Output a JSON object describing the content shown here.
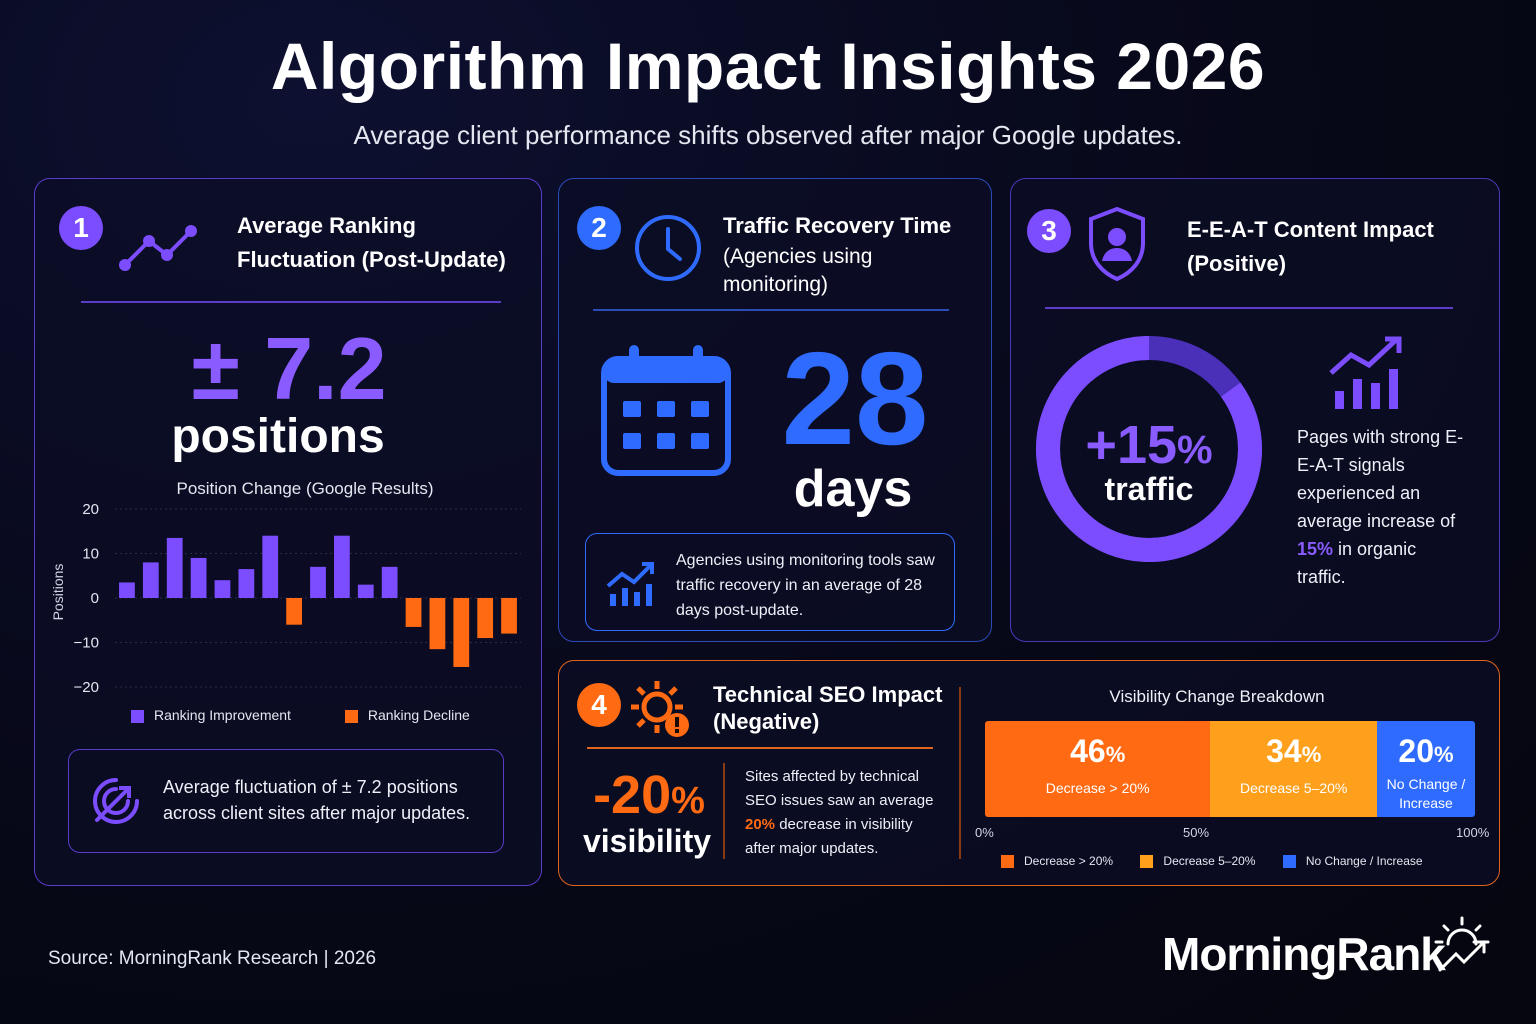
{
  "header": {
    "title": "Algorithm Impact Insights 2026",
    "subtitle": "Average client performance shifts observed after major Google updates."
  },
  "card1": {
    "number": "1",
    "title_line1": "Average Ranking",
    "title_line2": "Fluctuation (Post-Update)",
    "big_value": "± 7.2",
    "big_unit": "positions",
    "note": "Average fluctuation of ± 7.2 positions across client sites after major updates.",
    "icon": "trend-line-icon",
    "note_icon": "target-arrow-icon"
  },
  "card2": {
    "number": "2",
    "title_line1": "Traffic Recovery Time",
    "title_line2": "(Agencies using",
    "title_line3": "monitoring)",
    "big_value": "28",
    "big_unit": "days",
    "note": "Agencies using monitoring tools saw traffic recovery in an average of 28 days post-update.",
    "icon": "clock-icon"
  },
  "card3": {
    "number": "3",
    "title_line1": "E-E-A-T Content Impact",
    "title_line2": "(Positive)",
    "ring_value": "+15",
    "ring_pct": "%",
    "ring_unit": "traffic",
    "ring_fraction": 0.85,
    "desc_pre": "Pages with strong E-E-A-T signals experienced an average increase of ",
    "desc_hl": "15%",
    "desc_post": " in organic traffic.",
    "icon": "shield-user-icon"
  },
  "card4": {
    "number": "4",
    "title_line1": "Technical SEO Impact",
    "title_line2": "(Negative)",
    "big_value": "-20",
    "big_pct": "%",
    "big_unit": "visibility",
    "desc_pre": "Sites affected by technical SEO issues saw an average ",
    "desc_hl": "20%",
    "desc_post": " decrease in visibility after major updates.",
    "icon": "gear-warning-icon"
  },
  "colors": {
    "purple": "#7c4dff",
    "blue": "#2f6bff",
    "orange": "#ff6a13",
    "amber": "#ffa01c"
  },
  "chart_data": [
    {
      "type": "bar",
      "title": "Position Change (Google Results)",
      "ylabel": "Positions",
      "ylim": [
        -20,
        20
      ],
      "yticks": [
        "20",
        "10",
        "0",
        "−10",
        "−20"
      ],
      "ytick_values": [
        20,
        10,
        0,
        -10,
        -20
      ],
      "values": [
        3.5,
        8,
        13.5,
        9,
        4,
        6.5,
        14,
        -6,
        7,
        14,
        3,
        7,
        -6.5,
        -11.5,
        -15.5,
        -9,
        -8
      ],
      "legend": [
        {
          "name": "Ranking Improvement",
          "color": "#7c4dff"
        },
        {
          "name": "Ranking Decline",
          "color": "#ff6a13"
        }
      ],
      "legend_position": "bottom",
      "grid": true
    },
    {
      "type": "bar",
      "title": "Visibility Change Breakdown",
      "orientation": "stacked-horizontal",
      "segments": [
        {
          "value": 46,
          "label_value": "46",
          "label": "Decrease > 20%",
          "color": "#ff6a13"
        },
        {
          "value": 34,
          "label_value": "34",
          "label": "Decrease 5–20%",
          "color": "#ffa01c"
        },
        {
          "value": 20,
          "label_value": "20",
          "label": "No Change / Increase",
          "color": "#2f6bff",
          "label_l1": "No Change /",
          "label_l2": "Increase"
        }
      ],
      "pct_sign": "%",
      "axis_ticks": [
        "0%",
        "50%",
        "100%"
      ],
      "legend": [
        "Decrease > 20%",
        "Decrease 5–20%",
        "No Change / Increase"
      ],
      "legend_position": "bottom"
    }
  ],
  "footer": {
    "source": "Source: MorningRank Research | 2026",
    "brand": "MorningRank",
    "brand_icon": "sunrise-arrow-icon"
  }
}
